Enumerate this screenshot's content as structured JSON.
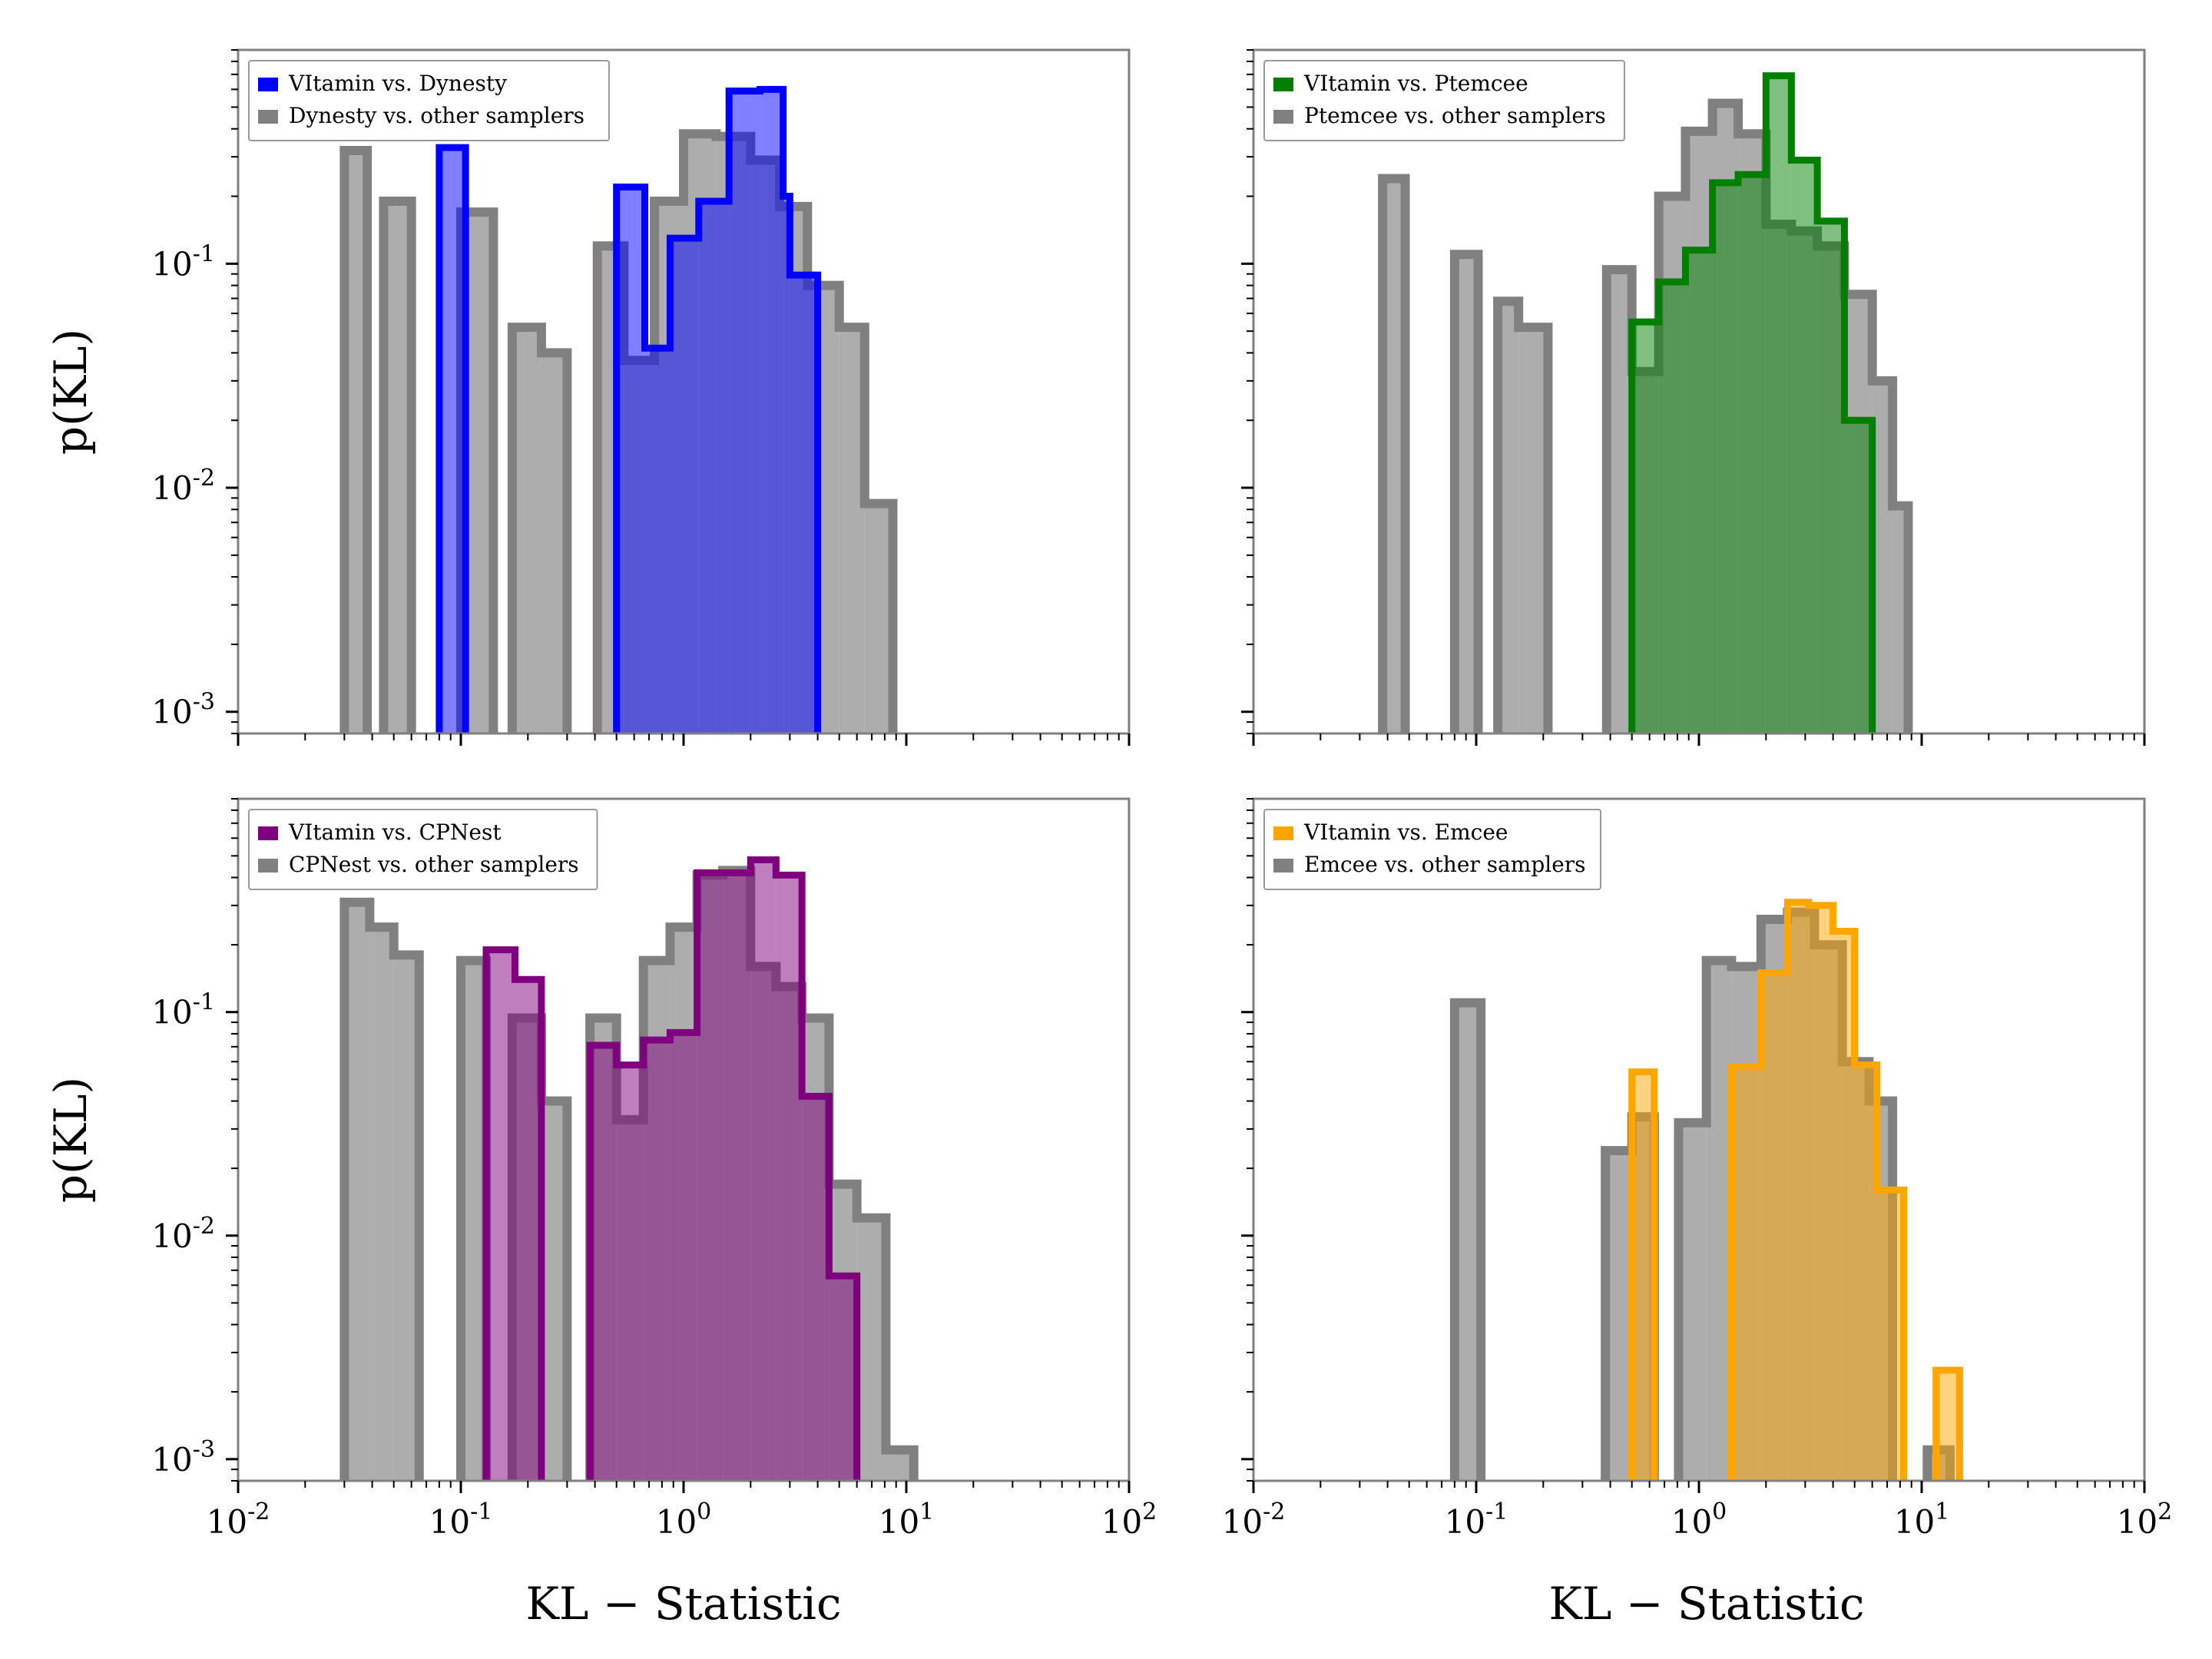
{
  "figure": {
    "y_axis_label": "p(KL)",
    "x_axis_label": "KL − Statistic"
  },
  "chart_data": [
    {
      "type": "histogram",
      "panel": "top-left",
      "xscale": "log",
      "yscale": "log",
      "xlim": [
        0.01,
        100
      ],
      "ylim": [
        0.0008,
        0.9
      ],
      "xticks": [
        0.01,
        0.1,
        1,
        10,
        100
      ],
      "yticks": [
        0.001,
        0.01,
        0.1
      ],
      "legend_position": "top-left",
      "series": [
        {
          "name": "Dynesty vs. other samplers",
          "color": "#808080",
          "fill": "#999999",
          "style": "background",
          "bins": [
            [
              0.03,
              0.038,
              0.32
            ],
            [
              0.045,
              0.06,
              0.19
            ],
            [
              0.1,
              0.14,
              0.17
            ],
            [
              0.17,
              0.23,
              0.052
            ],
            [
              0.23,
              0.3,
              0.04
            ],
            [
              0.41,
              0.54,
              0.12
            ],
            [
              0.54,
              0.74,
              0.037
            ],
            [
              0.74,
              1.0,
              0.19
            ],
            [
              1.0,
              1.4,
              0.38
            ],
            [
              1.4,
              2.0,
              0.37
            ],
            [
              2.0,
              2.7,
              0.29
            ],
            [
              2.7,
              3.6,
              0.18
            ],
            [
              3.6,
              5.0,
              0.08
            ],
            [
              5.0,
              6.5,
              0.052
            ],
            [
              6.5,
              8.7,
              0.0085
            ]
          ]
        },
        {
          "name": "VItamin vs. Dynesty",
          "color": "#0000ff",
          "fill": "#0000ff",
          "style": "foreground",
          "bins": [
            [
              0.08,
              0.105,
              0.33
            ],
            [
              0.5,
              0.67,
              0.22
            ],
            [
              0.67,
              0.87,
              0.042
            ],
            [
              0.87,
              1.17,
              0.13
            ],
            [
              1.17,
              1.6,
              0.19
            ],
            [
              1.6,
              2.2,
              0.59
            ],
            [
              2.2,
              2.8,
              0.6
            ],
            [
              2.8,
              3.0,
              0.2
            ],
            [
              3.0,
              4.0,
              0.089
            ]
          ]
        }
      ]
    },
    {
      "type": "histogram",
      "panel": "top-right",
      "xscale": "log",
      "yscale": "log",
      "xlim": [
        0.01,
        100
      ],
      "ylim": [
        0.0008,
        0.9
      ],
      "xticks": [
        0.01,
        0.1,
        1,
        10,
        100
      ],
      "yticks": [
        0.001,
        0.01,
        0.1
      ],
      "legend_position": "top-left",
      "series": [
        {
          "name": "Ptemcee vs. other samplers",
          "color": "#808080",
          "fill": "#999999",
          "style": "background",
          "bins": [
            [
              0.038,
              0.048,
              0.24
            ],
            [
              0.08,
              0.102,
              0.11
            ],
            [
              0.125,
              0.155,
              0.068
            ],
            [
              0.155,
              0.21,
              0.052
            ],
            [
              0.385,
              0.5,
              0.094
            ],
            [
              0.5,
              0.66,
              0.033
            ],
            [
              0.66,
              0.87,
              0.2
            ],
            [
              0.87,
              1.15,
              0.39
            ],
            [
              1.15,
              1.5,
              0.52
            ],
            [
              1.5,
              2.0,
              0.38
            ],
            [
              2.0,
              2.6,
              0.15
            ],
            [
              2.6,
              3.4,
              0.14
            ],
            [
              3.4,
              4.5,
              0.12
            ],
            [
              4.5,
              6.0,
              0.073
            ],
            [
              6.0,
              7.4,
              0.03
            ],
            [
              7.4,
              8.7,
              0.0083
            ]
          ]
        },
        {
          "name": "VItamin vs. Ptemcee",
          "color": "#007f00",
          "fill": "#007f00",
          "style": "foreground",
          "bins": [
            [
              0.5,
              0.66,
              0.055
            ],
            [
              0.66,
              0.87,
              0.083
            ],
            [
              0.87,
              1.15,
              0.115
            ],
            [
              1.15,
              1.5,
              0.23
            ],
            [
              1.5,
              2.0,
              0.25
            ],
            [
              2.0,
              2.6,
              0.69
            ],
            [
              2.6,
              3.4,
              0.29
            ],
            [
              3.4,
              4.5,
              0.155
            ],
            [
              4.5,
              6.0,
              0.02
            ]
          ]
        }
      ]
    },
    {
      "type": "histogram",
      "panel": "bottom-left",
      "xscale": "log",
      "yscale": "log",
      "xlim": [
        0.01,
        100
      ],
      "ylim": [
        0.0008,
        0.9
      ],
      "xticks": [
        0.01,
        0.1,
        1,
        10,
        100
      ],
      "yticks": [
        0.001,
        0.01,
        0.1
      ],
      "legend_position": "top-left",
      "series": [
        {
          "name": "CPNest vs. other samplers",
          "color": "#808080",
          "fill": "#999999",
          "style": "background",
          "bins": [
            [
              0.03,
              0.039,
              0.31
            ],
            [
              0.039,
              0.05,
              0.24
            ],
            [
              0.05,
              0.065,
              0.18
            ],
            [
              0.1,
              0.13,
              0.17
            ],
            [
              0.17,
              0.23,
              0.094
            ],
            [
              0.23,
              0.3,
              0.04
            ],
            [
              0.38,
              0.5,
              0.094
            ],
            [
              0.5,
              0.66,
              0.033
            ],
            [
              0.66,
              0.87,
              0.17
            ],
            [
              0.87,
              1.15,
              0.24
            ],
            [
              1.15,
              1.5,
              0.41
            ],
            [
              1.5,
              2.0,
              0.43
            ],
            [
              2.0,
              2.6,
              0.16
            ],
            [
              2.6,
              3.4,
              0.13
            ],
            [
              3.4,
              4.5,
              0.094
            ],
            [
              4.5,
              6.0,
              0.017
            ],
            [
              6.0,
              8.1,
              0.012
            ],
            [
              8.1,
              10.8,
              0.0011
            ]
          ]
        },
        {
          "name": "VItamin vs. CPNest",
          "color": "#7f007f",
          "fill": "#7f007f",
          "style": "foreground",
          "bins": [
            [
              0.13,
              0.175,
              0.19
            ],
            [
              0.175,
              0.23,
              0.14
            ],
            [
              0.38,
              0.5,
              0.071
            ],
            [
              0.5,
              0.66,
              0.058
            ],
            [
              0.66,
              0.87,
              0.075
            ],
            [
              0.87,
              1.15,
              0.081
            ],
            [
              1.15,
              1.5,
              0.42
            ],
            [
              1.5,
              2.0,
              0.42
            ],
            [
              2.0,
              2.6,
              0.48
            ],
            [
              2.6,
              3.4,
              0.41
            ],
            [
              3.4,
              4.5,
              0.042
            ],
            [
              4.5,
              6.0,
              0.0066
            ]
          ]
        }
      ]
    },
    {
      "type": "histogram",
      "panel": "bottom-right",
      "xscale": "log",
      "yscale": "log",
      "xlim": [
        0.01,
        100
      ],
      "ylim": [
        0.0008,
        0.9
      ],
      "xticks": [
        0.01,
        0.1,
        1,
        10,
        100
      ],
      "yticks": [
        0.001,
        0.01,
        0.1
      ],
      "legend_position": "top-left",
      "series": [
        {
          "name": "Emcee vs. other samplers",
          "color": "#808080",
          "fill": "#999999",
          "style": "background",
          "bins": [
            [
              0.08,
              0.105,
              0.11
            ],
            [
              0.38,
              0.5,
              0.024
            ],
            [
              0.5,
              0.63,
              0.034
            ],
            [
              0.81,
              1.08,
              0.032
            ],
            [
              1.08,
              1.4,
              0.17
            ],
            [
              1.4,
              1.9,
              0.16
            ],
            [
              1.9,
              2.5,
              0.26
            ],
            [
              2.5,
              3.3,
              0.28
            ],
            [
              3.3,
              4.4,
              0.2
            ],
            [
              4.4,
              5.8,
              0.06
            ],
            [
              5.8,
              7.4,
              0.04
            ],
            [
              10.6,
              13.4,
              0.0011
            ]
          ]
        },
        {
          "name": "VItamin vs. Emcee",
          "color": "#ffa500",
          "fill": "#ffa500",
          "style": "foreground",
          "bins": [
            [
              0.5,
              0.63,
              0.054
            ],
            [
              1.4,
              1.9,
              0.057
            ],
            [
              1.9,
              2.5,
              0.15
            ],
            [
              2.5,
              3.1,
              0.31
            ],
            [
              3.1,
              4.0,
              0.3
            ],
            [
              4.0,
              5.0,
              0.23
            ],
            [
              5.0,
              6.3,
              0.058
            ],
            [
              6.3,
              8.3,
              0.016
            ],
            [
              11.6,
              14.8,
              0.0025
            ]
          ]
        }
      ]
    }
  ]
}
